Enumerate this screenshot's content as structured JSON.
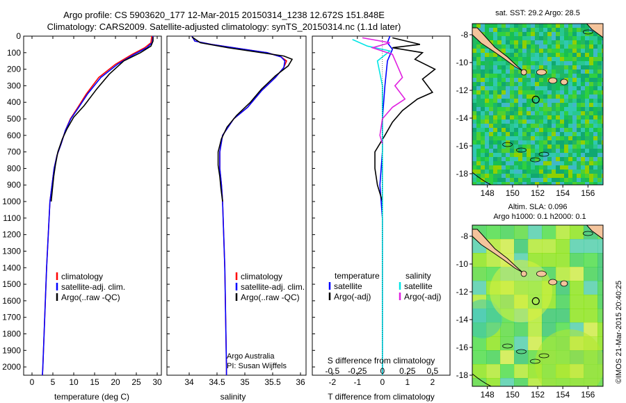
{
  "header": {
    "line1": "Argo profile: CS 5903620_177 12-Mar-2015 20150314_1238 12.672S 151.848E",
    "line2": "Climatology: CARS2009. Satellite-adjusted climatology: synTS_20150314.nc (1.1d later)"
  },
  "credit": {
    "org": "Argo Australia",
    "pi": "PI: Susan Wijffels",
    "stamp": "©IMOS 21-Mar-2015 20:40:25"
  },
  "colors": {
    "climatology": "#ff0000",
    "satellite": "#0000ff",
    "argo": "#000000",
    "sal_satellite": "#00e5e5",
    "sal_argo": "#e020e0",
    "land": "#f4c49c"
  },
  "chart_data": [
    {
      "type": "line",
      "name": "temperature-profile",
      "xlabel": "temperature (deg C)",
      "xlim": [
        -2,
        31
      ],
      "xticks": [
        0,
        5,
        10,
        15,
        20,
        25,
        30
      ],
      "ylim": [
        2050,
        0
      ],
      "yticks": [
        0,
        100,
        200,
        300,
        400,
        500,
        600,
        700,
        800,
        900,
        1000,
        1100,
        1200,
        1300,
        1400,
        1500,
        1600,
        1700,
        1800,
        1900,
        2000
      ],
      "legend": [
        "climatology",
        "satellite-adj. clim.",
        "Argo(..raw -QC)"
      ],
      "series": [
        {
          "name": "climatology",
          "color": "#ff0000",
          "points": [
            [
              28.7,
              0
            ],
            [
              28.5,
              40
            ],
            [
              27,
              70
            ],
            [
              24,
              110
            ],
            [
              20,
              170
            ],
            [
              16,
              250
            ],
            [
              13,
              350
            ],
            [
              11,
              430
            ],
            [
              9.2,
              500
            ],
            [
              8,
              570
            ],
            [
              7,
              650
            ],
            [
              6,
              720
            ],
            [
              5.3,
              800
            ],
            [
              4.8,
              900
            ],
            [
              4.3,
              1000
            ],
            [
              3.9,
              1200
            ],
            [
              3.5,
              1400
            ],
            [
              3.2,
              1600
            ],
            [
              2.9,
              1800
            ],
            [
              2.6,
              2000
            ],
            [
              2.5,
              2050
            ]
          ]
        },
        {
          "name": "satellite-adj. clim.",
          "color": "#0000ff",
          "points": [
            [
              29,
              0
            ],
            [
              28.8,
              40
            ],
            [
              27.5,
              70
            ],
            [
              24.5,
              110
            ],
            [
              20.5,
              170
            ],
            [
              16.5,
              250
            ],
            [
              13.3,
              350
            ],
            [
              11.2,
              430
            ],
            [
              9.3,
              500
            ],
            [
              8,
              570
            ],
            [
              7,
              650
            ],
            [
              6,
              720
            ],
            [
              5.3,
              800
            ],
            [
              4.8,
              900
            ],
            [
              4.3,
              1000
            ],
            [
              3.9,
              1200
            ],
            [
              3.5,
              1400
            ],
            [
              3.2,
              1600
            ],
            [
              2.9,
              1800
            ],
            [
              2.6,
              2000
            ],
            [
              2.5,
              2050
            ]
          ]
        },
        {
          "name": "Argo(..raw -QC)",
          "color": "#000000",
          "points": [
            [
              29,
              5
            ],
            [
              29,
              30
            ],
            [
              28.5,
              60
            ],
            [
              26,
              100
            ],
            [
              22,
              150
            ],
            [
              18.5,
              230
            ],
            [
              15.5,
              320
            ],
            [
              12.5,
              420
            ],
            [
              10,
              490
            ],
            [
              8.4,
              560
            ],
            [
              7.3,
              620
            ],
            [
              6.2,
              700
            ],
            [
              5.6,
              780
            ],
            [
              5.2,
              850
            ],
            [
              5,
              900
            ],
            [
              4.8,
              950
            ],
            [
              4.6,
              1000
            ]
          ]
        }
      ]
    },
    {
      "type": "line",
      "name": "salinity-profile",
      "xlabel": "salinity",
      "xlim": [
        33.6,
        36.1
      ],
      "xticks": [
        34,
        34.5,
        35,
        35.5,
        36
      ],
      "ylim": [
        2050,
        0
      ],
      "legend": [
        "climatology",
        "satellite-adj. clim.",
        "Argo(..raw -QC)"
      ],
      "series": [
        {
          "name": "climatology",
          "color": "#ff0000",
          "points": [
            [
              34.05,
              0
            ],
            [
              34.1,
              30
            ],
            [
              34.4,
              50
            ],
            [
              34.9,
              75
            ],
            [
              35.4,
              100
            ],
            [
              35.65,
              125
            ],
            [
              35.75,
              150
            ],
            [
              35.7,
              190
            ],
            [
              35.55,
              250
            ],
            [
              35.3,
              330
            ],
            [
              35.05,
              430
            ],
            [
              34.8,
              500
            ],
            [
              34.6,
              600
            ],
            [
              34.55,
              700
            ],
            [
              34.55,
              800
            ],
            [
              34.58,
              900
            ],
            [
              34.6,
              1000
            ],
            [
              34.62,
              1200
            ],
            [
              34.64,
              1400
            ],
            [
              34.65,
              1600
            ],
            [
              34.66,
              1800
            ],
            [
              34.67,
              2000
            ],
            [
              34.67,
              2050
            ]
          ]
        },
        {
          "name": "satellite-adj. clim.",
          "color": "#0000ff",
          "points": [
            [
              34.05,
              0
            ],
            [
              34.1,
              30
            ],
            [
              34.4,
              50
            ],
            [
              34.9,
              75
            ],
            [
              35.4,
              100
            ],
            [
              35.65,
              125
            ],
            [
              35.72,
              150
            ],
            [
              35.7,
              190
            ],
            [
              35.55,
              250
            ],
            [
              35.3,
              330
            ],
            [
              35.05,
              430
            ],
            [
              34.8,
              500
            ],
            [
              34.6,
              600
            ],
            [
              34.55,
              700
            ],
            [
              34.55,
              800
            ],
            [
              34.58,
              900
            ],
            [
              34.6,
              1000
            ],
            [
              34.62,
              1200
            ],
            [
              34.64,
              1400
            ],
            [
              34.65,
              1600
            ],
            [
              34.66,
              1800
            ],
            [
              34.67,
              2000
            ],
            [
              34.67,
              2050
            ]
          ]
        },
        {
          "name": "Argo(..raw -QC)",
          "color": "#000000",
          "points": [
            [
              34.05,
              5
            ],
            [
              34.2,
              40
            ],
            [
              34.7,
              70
            ],
            [
              35.3,
              100
            ],
            [
              35.7,
              120
            ],
            [
              35.85,
              140
            ],
            [
              35.78,
              180
            ],
            [
              35.55,
              240
            ],
            [
              35.3,
              320
            ],
            [
              35.1,
              400
            ],
            [
              34.85,
              480
            ],
            [
              34.68,
              550
            ],
            [
              34.58,
              620
            ],
            [
              34.52,
              700
            ],
            [
              34.52,
              780
            ],
            [
              34.55,
              850
            ],
            [
              34.57,
              920
            ],
            [
              34.6,
              1000
            ]
          ]
        }
      ]
    },
    {
      "type": "line",
      "name": "difference-profile",
      "xlabel": "T difference from climatology",
      "xlabel_top": "S difference from climatology",
      "xlim": [
        -2.8,
        2.7
      ],
      "xticks": [
        -2,
        -1,
        0,
        1,
        2
      ],
      "xticks_s": [
        "-0.5",
        "-0.25",
        "0",
        "0.25",
        "0.5"
      ],
      "xticks_s_pos": [
        -2,
        -1,
        0,
        1,
        2
      ],
      "ylim": [
        2050,
        0
      ],
      "legend_t": [
        "temperature",
        "satellite",
        "Argo(-adj)"
      ],
      "legend_s": [
        "salinity",
        "satellite",
        "Argo(-adj)"
      ],
      "series": [
        {
          "name": "T satellite",
          "color": "#0000ff",
          "points": [
            [
              0.3,
              0
            ],
            [
              0.2,
              40
            ],
            [
              0.4,
              80
            ],
            [
              0.2,
              150
            ],
            [
              0.1,
              300
            ],
            [
              0,
              500
            ],
            [
              0,
              700
            ],
            [
              -0.1,
              900
            ],
            [
              0,
              1100
            ],
            [
              0,
              1500
            ],
            [
              0,
              2050
            ]
          ]
        },
        {
          "name": "T Argo(-adj)",
          "color": "#000000",
          "points": [
            [
              0.4,
              10
            ],
            [
              1.5,
              50
            ],
            [
              0.4,
              70
            ],
            [
              1.6,
              100
            ],
            [
              1.3,
              140
            ],
            [
              2.1,
              200
            ],
            [
              1.6,
              260
            ],
            [
              2,
              340
            ],
            [
              1.4,
              380
            ],
            [
              0.8,
              450
            ],
            [
              0.4,
              520
            ],
            [
              0.1,
              600
            ],
            [
              -0.3,
              700
            ],
            [
              -0.3,
              800
            ],
            [
              -0.2,
              900
            ],
            [
              0,
              1000
            ]
          ]
        },
        {
          "name": "S satellite",
          "color": "#00e5e5",
          "points": [
            [
              -1.2,
              20
            ],
            [
              -0.6,
              60
            ],
            [
              0.3,
              90
            ],
            [
              -0.2,
              150
            ],
            [
              0,
              300
            ],
            [
              0,
              500
            ],
            [
              0,
              800
            ],
            [
              0,
              1200
            ],
            [
              0,
              1600
            ],
            [
              0,
              2050
            ]
          ]
        },
        {
          "name": "S Argo(-adj)",
          "color": "#e020e0",
          "points": [
            [
              -0.8,
              10
            ],
            [
              0.3,
              40
            ],
            [
              -0.4,
              70
            ],
            [
              0.4,
              110
            ],
            [
              0.6,
              180
            ],
            [
              0.8,
              250
            ],
            [
              0.5,
              300
            ],
            [
              0.9,
              380
            ],
            [
              0.4,
              430
            ],
            [
              0,
              500
            ],
            [
              -0.1,
              600
            ],
            [
              0,
              650
            ]
          ]
        }
      ]
    },
    {
      "type": "heatmap",
      "name": "sst-map",
      "title": "sat. SST: 29.2  Argo: 28.5",
      "xticks": [
        148,
        150,
        152,
        154,
        156
      ],
      "yticks": [
        -8,
        -10,
        -12,
        -14,
        -16,
        -18
      ],
      "xlim": [
        146.8,
        157.2
      ],
      "ylim": [
        -18.8,
        -7.2
      ],
      "argo_position": [
        151.85,
        -12.67
      ]
    },
    {
      "type": "heatmap",
      "name": "sla-map",
      "title": "Altim. SLA: 0.096",
      "subtitle": "Argo h1000: 0.1  h2000: 0.1",
      "xticks": [
        148,
        150,
        152,
        154,
        156
      ],
      "yticks": [
        -8,
        -10,
        -12,
        -14,
        -16,
        -18
      ],
      "xlim": [
        146.8,
        157.2
      ],
      "ylim": [
        -18.8,
        -7.2
      ],
      "argo_position": [
        151.85,
        -12.67
      ]
    }
  ]
}
